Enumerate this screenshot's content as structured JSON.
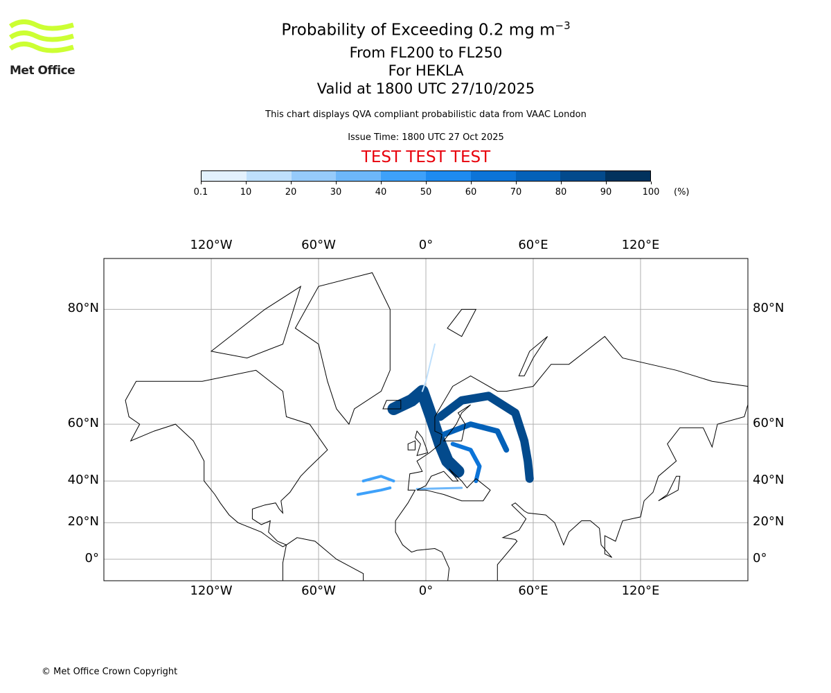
{
  "header": {
    "title_main": "Probability of Exceeding 0.2 mg m",
    "title_exp": "−3",
    "levels": "From FL200 to FL250",
    "volcano": "For HEKLA",
    "valid": "Valid at 1800 UTC 27/10/2025",
    "note": "This chart displays QVA compliant probabilistic data from VAAC London",
    "issue": "Issue Time: 1800 UTC 27 Oct 2025",
    "test_banner": "TEST TEST TEST",
    "test_color": "#e8000b"
  },
  "logo": {
    "text": "Met Office",
    "color": "#ccff33"
  },
  "colorbar": {
    "ticks": [
      "0.1",
      "10",
      "20",
      "30",
      "40",
      "50",
      "60",
      "70",
      "80",
      "90",
      "100"
    ],
    "unit": "(%)",
    "colors": [
      "#e3f1fd",
      "#bfe0fc",
      "#96cbfb",
      "#6db7fa",
      "#3ea1fa",
      "#1e8bf0",
      "#0c74d8",
      "#0461b8",
      "#034a8c",
      "#02325d"
    ]
  },
  "map": {
    "lon_labels": [
      "120°W",
      "60°W",
      "0°",
      "60°E",
      "120°E"
    ],
    "lat_labels": [
      "80°N",
      "60°N",
      "40°N",
      "20°N",
      "0°"
    ]
  },
  "footer": {
    "copyright": "© Met Office Crown Copyright"
  }
}
